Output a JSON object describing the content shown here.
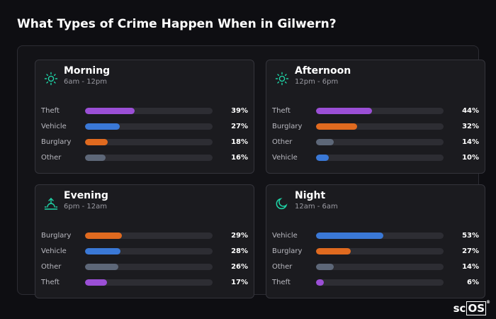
{
  "title": "What Types of Crime Happen When in Gilwern?",
  "colors": {
    "accent_icon": "#1fd3a6",
    "Theft": "#9b4fd6",
    "Vehicle": "#3a78d6",
    "Burglary": "#e06a1f",
    "Other": "#5d6778"
  },
  "cards": [
    {
      "name": "Morning",
      "time": "6am - 12pm",
      "icon": "sun-icon",
      "rows": [
        {
          "label": "Theft",
          "value": "39%",
          "pct": 39
        },
        {
          "label": "Vehicle",
          "value": "27%",
          "pct": 27
        },
        {
          "label": "Burglary",
          "value": "18%",
          "pct": 18
        },
        {
          "label": "Other",
          "value": "16%",
          "pct": 16
        }
      ]
    },
    {
      "name": "Afternoon",
      "time": "12pm - 6pm",
      "icon": "sun-icon",
      "rows": [
        {
          "label": "Theft",
          "value": "44%",
          "pct": 44
        },
        {
          "label": "Burglary",
          "value": "32%",
          "pct": 32
        },
        {
          "label": "Other",
          "value": "14%",
          "pct": 14
        },
        {
          "label": "Vehicle",
          "value": "10%",
          "pct": 10
        }
      ]
    },
    {
      "name": "Evening",
      "time": "6pm - 12am",
      "icon": "sunset-icon",
      "rows": [
        {
          "label": "Burglary",
          "value": "29%",
          "pct": 29
        },
        {
          "label": "Vehicle",
          "value": "28%",
          "pct": 28
        },
        {
          "label": "Other",
          "value": "26%",
          "pct": 26
        },
        {
          "label": "Theft",
          "value": "17%",
          "pct": 17
        }
      ]
    },
    {
      "name": "Night",
      "time": "12am - 6am",
      "icon": "moon-icon",
      "rows": [
        {
          "label": "Vehicle",
          "value": "53%",
          "pct": 53
        },
        {
          "label": "Burglary",
          "value": "27%",
          "pct": 27
        },
        {
          "label": "Other",
          "value": "14%",
          "pct": 14
        },
        {
          "label": "Theft",
          "value": "6%",
          "pct": 6
        }
      ]
    }
  ],
  "brand": {
    "text_a": "sc",
    "text_b": "OS",
    "mark": "®"
  }
}
